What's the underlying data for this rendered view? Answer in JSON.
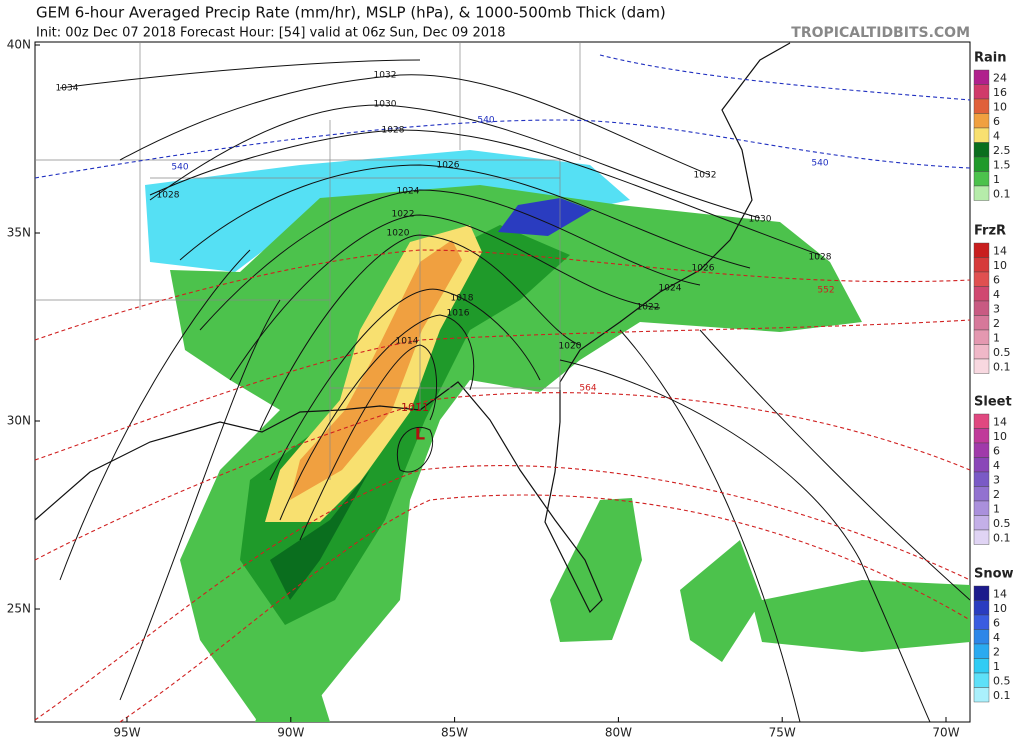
{
  "header": {
    "title": "GEM 6-hour Averaged Precip Rate (mm/hr), MSLP (hPa), & 1000-500mb Thick (dam)",
    "subtitle": "Init: 00z Dec 07 2018   Forecast Hour: [54]   valid at 06z Sun, Dec 09 2018",
    "credit": "TROPICALTIDBITS.COM"
  },
  "map": {
    "lat_labels": [
      "40N",
      "35N",
      "30N",
      "25N"
    ],
    "lon_labels": [
      "95W",
      "90W",
      "85W",
      "80W",
      "75W",
      "70W"
    ],
    "isobar_labels": [
      "1034",
      "1032",
      "1030",
      "1028",
      "1026",
      "1024",
      "1022",
      "1020",
      "1018",
      "1016",
      "1014",
      "1032",
      "1030",
      "1028",
      "1026",
      "1024",
      "1022",
      "1020",
      "1028"
    ],
    "thickness_labels": [
      "540",
      "540",
      "540",
      "552",
      "564"
    ],
    "low": {
      "pressure": "1011",
      "symbol": "L"
    }
  },
  "legends": [
    {
      "name": "Rain",
      "labels": [
        "24",
        "16",
        "10",
        "6",
        "4",
        "2.5",
        "1.5",
        "1",
        "0.1"
      ],
      "colors": [
        "#b0208c",
        "#d03a6a",
        "#e0603a",
        "#f0a040",
        "#f8e070",
        "#0a6e1e",
        "#1f9a2a",
        "#4cc24c",
        "#b6ecaa"
      ]
    },
    {
      "name": "FrzR",
      "labels": [
        "14",
        "10",
        "6",
        "4",
        "3",
        "2",
        "1",
        "0.5",
        "0.1"
      ],
      "colors": [
        "#c81e1e",
        "#d63a3a",
        "#e05050",
        "#d04870",
        "#c85a82",
        "#d6789a",
        "#e498b0",
        "#f0b8c8",
        "#f8d8e0"
      ]
    },
    {
      "name": "Sleet",
      "labels": [
        "14",
        "10",
        "6",
        "4",
        "3",
        "2",
        "1",
        "0.5",
        "0.1"
      ],
      "colors": [
        "#e04880",
        "#c03a9a",
        "#a03aaa",
        "#8a46b8",
        "#7a5ac6",
        "#9272d0",
        "#aa90dc",
        "#c4b0e8",
        "#e0d4f4"
      ]
    },
    {
      "name": "Snow",
      "labels": [
        "14",
        "10",
        "6",
        "4",
        "2",
        "1",
        "0.5",
        "0.1"
      ],
      "colors": [
        "#1c1a8c",
        "#2a3cc0",
        "#3a5ce0",
        "#2e86e8",
        "#2aaaf0",
        "#30ccf4",
        "#5ee0f8",
        "#aaf0fc"
      ]
    }
  ]
}
